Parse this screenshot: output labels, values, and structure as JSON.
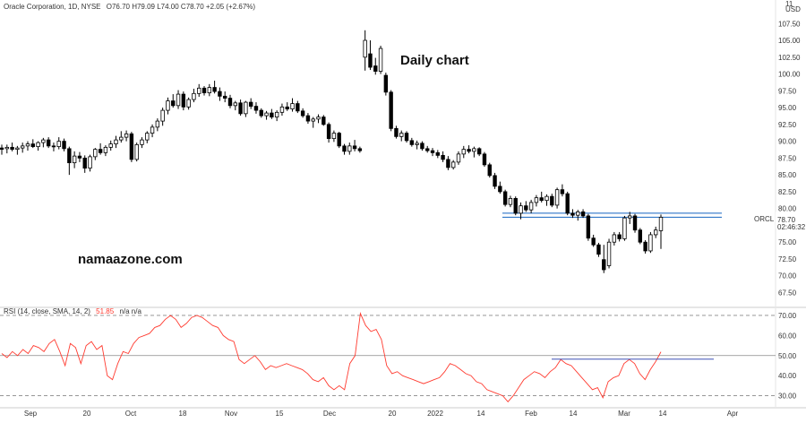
{
  "header": {
    "symbol_line": "Oracle Corporation, 1D, NYSE",
    "ohlc": "O76.70 H79.09 L74.00 C78.70 +2.05 (+2.67%)",
    "currency_top": "11",
    "currency_unit": "USD"
  },
  "annotations": {
    "chart_title": "Daily chart",
    "watermark": "namaazone.com"
  },
  "price_label": {
    "ticker": "ORCL",
    "price": "78.70",
    "countdown": "02:46:32"
  },
  "rsi_header": {
    "name": "RSI (14, close, SMA, 14, 2)",
    "value": "51.85",
    "extra": "n/a n/a"
  },
  "colors": {
    "up_candle": "#ffffff",
    "down_candle": "#000000",
    "candle_outline": "#000000",
    "rsi_line": "#ff3b30",
    "horizontal_lines": "#1565c0",
    "rsi_bands": "#888888",
    "resistance_ray": "#3f51b5"
  },
  "chart_data": [
    {
      "type": "candlestick",
      "title": "",
      "xlabel": "",
      "ylabel": "",
      "ylim": [
        65.3,
        111.0
      ],
      "y_ticks": [
        "107.50",
        "105.00",
        "102.50",
        "100.00",
        "97.50",
        "95.00",
        "92.50",
        "90.00",
        "87.50",
        "85.00",
        "82.50",
        "80.00",
        "78.70",
        "77.50",
        "75.00",
        "72.50",
        "70.00",
        "67.50"
      ],
      "x_ticks": [
        "Sep",
        "20",
        "Oct",
        "18",
        "Nov",
        "15",
        "Dec",
        "20",
        "2022",
        "14",
        "Feb",
        "14",
        "Mar",
        "14",
        "Apr"
      ],
      "horizontal_levels": [
        79.3,
        78.7
      ],
      "last_close": 78.7,
      "candles": [
        {
          "o": 89.0,
          "h": 89.5,
          "l": 88.0,
          "c": 88.8
        },
        {
          "o": 88.9,
          "h": 89.5,
          "l": 88.2,
          "c": 89.1
        },
        {
          "o": 89.1,
          "h": 89.8,
          "l": 88.5,
          "c": 88.8
        },
        {
          "o": 88.8,
          "h": 89.3,
          "l": 88.0,
          "c": 89.0
        },
        {
          "o": 89.0,
          "h": 89.8,
          "l": 88.3,
          "c": 89.3
        },
        {
          "o": 89.3,
          "h": 90.0,
          "l": 88.6,
          "c": 89.6
        },
        {
          "o": 89.6,
          "h": 90.3,
          "l": 89.0,
          "c": 89.2
        },
        {
          "o": 89.2,
          "h": 90.0,
          "l": 88.6,
          "c": 89.8
        },
        {
          "o": 89.8,
          "h": 90.5,
          "l": 89.1,
          "c": 90.2
        },
        {
          "o": 90.2,
          "h": 90.6,
          "l": 89.0,
          "c": 89.3
        },
        {
          "o": 89.3,
          "h": 89.8,
          "l": 88.5,
          "c": 89.2
        },
        {
          "o": 89.2,
          "h": 90.6,
          "l": 88.8,
          "c": 90.0
        },
        {
          "o": 90.0,
          "h": 90.4,
          "l": 88.5,
          "c": 88.9
        },
        {
          "o": 88.9,
          "h": 89.2,
          "l": 85.0,
          "c": 86.8
        },
        {
          "o": 86.8,
          "h": 88.5,
          "l": 86.0,
          "c": 87.8
        },
        {
          "o": 87.8,
          "h": 88.4,
          "l": 86.9,
          "c": 87.5
        },
        {
          "o": 87.5,
          "h": 87.9,
          "l": 85.3,
          "c": 86.0
        },
        {
          "o": 86.0,
          "h": 88.0,
          "l": 85.5,
          "c": 87.7
        },
        {
          "o": 87.7,
          "h": 89.0,
          "l": 87.2,
          "c": 88.8
        },
        {
          "o": 88.8,
          "h": 89.7,
          "l": 88.0,
          "c": 88.3
        },
        {
          "o": 88.3,
          "h": 89.4,
          "l": 87.8,
          "c": 89.1
        },
        {
          "o": 89.1,
          "h": 90.1,
          "l": 88.6,
          "c": 89.6
        },
        {
          "o": 89.6,
          "h": 90.8,
          "l": 89.0,
          "c": 90.2
        },
        {
          "o": 90.2,
          "h": 91.5,
          "l": 89.8,
          "c": 90.6
        },
        {
          "o": 90.6,
          "h": 91.6,
          "l": 90.0,
          "c": 91.1
        },
        {
          "o": 91.1,
          "h": 91.4,
          "l": 86.9,
          "c": 87.3
        },
        {
          "o": 87.3,
          "h": 89.8,
          "l": 87.0,
          "c": 89.5
        },
        {
          "o": 89.5,
          "h": 90.6,
          "l": 89.0,
          "c": 90.2
        },
        {
          "o": 90.2,
          "h": 91.5,
          "l": 89.7,
          "c": 91.2
        },
        {
          "o": 91.2,
          "h": 92.5,
          "l": 90.6,
          "c": 92.1
        },
        {
          "o": 92.1,
          "h": 93.4,
          "l": 91.5,
          "c": 93.0
        },
        {
          "o": 93.0,
          "h": 95.0,
          "l": 92.3,
          "c": 94.6
        },
        {
          "o": 94.6,
          "h": 96.5,
          "l": 94.0,
          "c": 96.0
        },
        {
          "o": 96.0,
          "h": 97.0,
          "l": 95.0,
          "c": 95.3
        },
        {
          "o": 95.3,
          "h": 97.6,
          "l": 94.8,
          "c": 97.0
        },
        {
          "o": 97.0,
          "h": 97.4,
          "l": 94.6,
          "c": 95.1
        },
        {
          "o": 95.1,
          "h": 96.5,
          "l": 94.7,
          "c": 96.2
        },
        {
          "o": 96.2,
          "h": 97.8,
          "l": 95.8,
          "c": 97.1
        },
        {
          "o": 97.1,
          "h": 98.5,
          "l": 96.6,
          "c": 97.9
        },
        {
          "o": 97.9,
          "h": 98.2,
          "l": 96.8,
          "c": 97.2
        },
        {
          "o": 97.2,
          "h": 98.5,
          "l": 96.7,
          "c": 98.0
        },
        {
          "o": 98.0,
          "h": 99.0,
          "l": 97.1,
          "c": 97.4
        },
        {
          "o": 97.4,
          "h": 98.0,
          "l": 96.0,
          "c": 96.7
        },
        {
          "o": 96.7,
          "h": 97.4,
          "l": 95.8,
          "c": 96.4
        },
        {
          "o": 96.4,
          "h": 96.9,
          "l": 94.9,
          "c": 95.3
        },
        {
          "o": 95.3,
          "h": 96.0,
          "l": 94.6,
          "c": 95.7
        },
        {
          "o": 95.7,
          "h": 96.2,
          "l": 93.8,
          "c": 94.1
        },
        {
          "o": 94.1,
          "h": 96.0,
          "l": 93.6,
          "c": 95.8
        },
        {
          "o": 95.8,
          "h": 96.4,
          "l": 94.8,
          "c": 95.2
        },
        {
          "o": 95.2,
          "h": 95.8,
          "l": 94.1,
          "c": 94.6
        },
        {
          "o": 94.6,
          "h": 94.9,
          "l": 93.5,
          "c": 93.8
        },
        {
          "o": 93.8,
          "h": 94.5,
          "l": 93.2,
          "c": 94.2
        },
        {
          "o": 94.2,
          "h": 94.8,
          "l": 93.3,
          "c": 93.6
        },
        {
          "o": 93.6,
          "h": 94.6,
          "l": 93.0,
          "c": 94.3
        },
        {
          "o": 94.3,
          "h": 95.6,
          "l": 93.8,
          "c": 95.1
        },
        {
          "o": 95.1,
          "h": 95.8,
          "l": 94.5,
          "c": 94.8
        },
        {
          "o": 94.8,
          "h": 96.4,
          "l": 94.4,
          "c": 95.6
        },
        {
          "o": 95.6,
          "h": 96.0,
          "l": 94.2,
          "c": 94.5
        },
        {
          "o": 94.5,
          "h": 94.9,
          "l": 93.5,
          "c": 93.8
        },
        {
          "o": 93.8,
          "h": 94.2,
          "l": 92.6,
          "c": 93.0
        },
        {
          "o": 93.0,
          "h": 93.6,
          "l": 92.0,
          "c": 93.3
        },
        {
          "o": 93.3,
          "h": 94.0,
          "l": 92.7,
          "c": 93.6
        },
        {
          "o": 93.6,
          "h": 93.9,
          "l": 92.3,
          "c": 92.5
        },
        {
          "o": 92.5,
          "h": 92.8,
          "l": 89.8,
          "c": 90.4
        },
        {
          "o": 90.4,
          "h": 91.6,
          "l": 89.9,
          "c": 91.2
        },
        {
          "o": 91.2,
          "h": 91.4,
          "l": 89.0,
          "c": 89.3
        },
        {
          "o": 89.3,
          "h": 89.6,
          "l": 88.0,
          "c": 88.5
        },
        {
          "o": 88.5,
          "h": 89.8,
          "l": 88.0,
          "c": 89.3
        },
        {
          "o": 89.3,
          "h": 90.2,
          "l": 88.5,
          "c": 88.9
        },
        {
          "o": 88.9,
          "h": 89.2,
          "l": 88.3,
          "c": 88.6
        },
        {
          "o": 102.5,
          "h": 106.5,
          "l": 100.5,
          "c": 105.0
        },
        {
          "o": 103.0,
          "h": 105.0,
          "l": 100.6,
          "c": 101.0
        },
        {
          "o": 101.2,
          "h": 102.4,
          "l": 99.9,
          "c": 100.4
        },
        {
          "o": 100.4,
          "h": 104.2,
          "l": 100.0,
          "c": 103.8
        },
        {
          "o": 99.8,
          "h": 100.2,
          "l": 96.8,
          "c": 97.3
        },
        {
          "o": 97.3,
          "h": 97.6,
          "l": 91.5,
          "c": 91.9
        },
        {
          "o": 91.9,
          "h": 92.3,
          "l": 90.4,
          "c": 90.7
        },
        {
          "o": 90.7,
          "h": 91.6,
          "l": 90.0,
          "c": 91.2
        },
        {
          "o": 91.2,
          "h": 91.5,
          "l": 89.8,
          "c": 90.1
        },
        {
          "o": 90.1,
          "h": 90.5,
          "l": 89.2,
          "c": 89.5
        },
        {
          "o": 89.5,
          "h": 90.1,
          "l": 88.8,
          "c": 89.7
        },
        {
          "o": 89.7,
          "h": 90.0,
          "l": 88.6,
          "c": 88.9
        },
        {
          "o": 88.9,
          "h": 89.3,
          "l": 88.3,
          "c": 88.6
        },
        {
          "o": 88.6,
          "h": 89.0,
          "l": 87.8,
          "c": 88.3
        },
        {
          "o": 88.3,
          "h": 88.7,
          "l": 87.5,
          "c": 87.9
        },
        {
          "o": 87.9,
          "h": 88.5,
          "l": 86.9,
          "c": 87.3
        },
        {
          "o": 87.3,
          "h": 87.8,
          "l": 85.7,
          "c": 86.1
        },
        {
          "o": 86.1,
          "h": 87.2,
          "l": 85.8,
          "c": 86.9
        },
        {
          "o": 86.9,
          "h": 88.5,
          "l": 86.5,
          "c": 88.1
        },
        {
          "o": 88.1,
          "h": 89.3,
          "l": 87.5,
          "c": 88.8
        },
        {
          "o": 88.8,
          "h": 89.4,
          "l": 88.2,
          "c": 88.5
        },
        {
          "o": 88.5,
          "h": 89.2,
          "l": 87.6,
          "c": 88.9
        },
        {
          "o": 88.9,
          "h": 89.1,
          "l": 87.8,
          "c": 88.1
        },
        {
          "o": 88.1,
          "h": 88.4,
          "l": 86.2,
          "c": 86.5
        },
        {
          "o": 86.5,
          "h": 86.8,
          "l": 84.6,
          "c": 84.9
        },
        {
          "o": 84.9,
          "h": 85.3,
          "l": 82.9,
          "c": 83.3
        },
        {
          "o": 83.3,
          "h": 84.0,
          "l": 82.2,
          "c": 82.5
        },
        {
          "o": 82.5,
          "h": 82.8,
          "l": 80.3,
          "c": 80.6
        },
        {
          "o": 80.6,
          "h": 81.9,
          "l": 80.2,
          "c": 81.5
        },
        {
          "o": 81.5,
          "h": 81.8,
          "l": 79.0,
          "c": 79.3
        },
        {
          "o": 79.3,
          "h": 80.9,
          "l": 78.4,
          "c": 80.4
        },
        {
          "o": 80.4,
          "h": 81.1,
          "l": 79.5,
          "c": 79.8
        },
        {
          "o": 79.8,
          "h": 81.3,
          "l": 79.3,
          "c": 80.9
        },
        {
          "o": 80.9,
          "h": 82.0,
          "l": 80.3,
          "c": 81.6
        },
        {
          "o": 81.6,
          "h": 82.5,
          "l": 80.9,
          "c": 81.2
        },
        {
          "o": 81.2,
          "h": 82.1,
          "l": 80.4,
          "c": 81.8
        },
        {
          "o": 81.8,
          "h": 82.2,
          "l": 80.2,
          "c": 80.5
        },
        {
          "o": 80.5,
          "h": 83.1,
          "l": 80.0,
          "c": 82.8
        },
        {
          "o": 82.8,
          "h": 83.6,
          "l": 81.8,
          "c": 82.2
        },
        {
          "o": 82.2,
          "h": 82.5,
          "l": 79.0,
          "c": 79.3
        },
        {
          "o": 79.3,
          "h": 79.9,
          "l": 78.6,
          "c": 79.0
        },
        {
          "o": 79.0,
          "h": 79.8,
          "l": 78.2,
          "c": 79.5
        },
        {
          "o": 79.5,
          "h": 79.9,
          "l": 78.6,
          "c": 78.9
        },
        {
          "o": 78.9,
          "h": 79.2,
          "l": 75.2,
          "c": 75.6
        },
        {
          "o": 75.6,
          "h": 76.1,
          "l": 74.3,
          "c": 74.6
        },
        {
          "o": 74.6,
          "h": 74.9,
          "l": 72.8,
          "c": 73.2
        },
        {
          "o": 72.4,
          "h": 74.6,
          "l": 70.4,
          "c": 70.9
        },
        {
          "o": 71.5,
          "h": 75.5,
          "l": 71.1,
          "c": 75.0
        },
        {
          "o": 75.0,
          "h": 76.5,
          "l": 74.5,
          "c": 76.1
        },
        {
          "o": 76.1,
          "h": 76.5,
          "l": 75.1,
          "c": 75.5
        },
        {
          "o": 75.5,
          "h": 78.9,
          "l": 75.2,
          "c": 78.6
        },
        {
          "o": 78.6,
          "h": 79.5,
          "l": 77.7,
          "c": 78.9
        },
        {
          "o": 78.9,
          "h": 79.2,
          "l": 76.4,
          "c": 76.8
        },
        {
          "o": 76.8,
          "h": 77.1,
          "l": 74.7,
          "c": 75.0
        },
        {
          "o": 75.0,
          "h": 75.3,
          "l": 73.3,
          "c": 73.7
        },
        {
          "o": 73.7,
          "h": 76.5,
          "l": 73.4,
          "c": 76.1
        },
        {
          "o": 76.1,
          "h": 77.3,
          "l": 75.6,
          "c": 76.8
        },
        {
          "o": 76.7,
          "h": 79.1,
          "l": 74.0,
          "c": 78.7
        }
      ]
    },
    {
      "type": "line",
      "title": "",
      "xlabel": "",
      "ylabel": "",
      "ylim": [
        24,
        74
      ],
      "y_ticks": [
        "70.00",
        "60.00",
        "50.00",
        "40.00",
        "30.00"
      ],
      "bands": [
        70,
        50,
        30
      ],
      "resistance_level": 48.2,
      "series": [
        {
          "name": "",
          "values": [
            51,
            49,
            52,
            50,
            53,
            51,
            55,
            54,
            52,
            56,
            58,
            52,
            45,
            56,
            54,
            46,
            55,
            57,
            53,
            55,
            40,
            38,
            46,
            52,
            51,
            56,
            59,
            60,
            61,
            64,
            65,
            68,
            70,
            68,
            64,
            66,
            69,
            70,
            69,
            67,
            65,
            64,
            60,
            58,
            57,
            48,
            46,
            48,
            50,
            47,
            43,
            45,
            44,
            45,
            46,
            45,
            44,
            43,
            41,
            38,
            37,
            39,
            35,
            33,
            35,
            33,
            46,
            50,
            71,
            65,
            62,
            63,
            58,
            45,
            41,
            42,
            40,
            39,
            38,
            37,
            36,
            37,
            38,
            39,
            42,
            46,
            45,
            43,
            41,
            40,
            37,
            36,
            33,
            32,
            31,
            30,
            27,
            30,
            34,
            38,
            40,
            42,
            41,
            39,
            42,
            44,
            48,
            46,
            45,
            42,
            39,
            36,
            33,
            34,
            29,
            37,
            39,
            40,
            46,
            48,
            46,
            41,
            38,
            43,
            47,
            51.85
          ]
        }
      ]
    }
  ]
}
